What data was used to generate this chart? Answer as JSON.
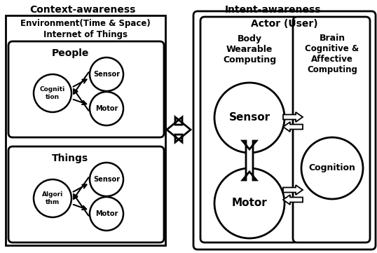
{
  "title_left": "Context-awareness",
  "title_right": "Intent-awareness",
  "env_title1": "Environment(Time & Space)",
  "env_title2": "Internet of Things",
  "actor_title": "Actor (User)",
  "people_label": "People",
  "things_label": "Things",
  "body_label1": "Body",
  "body_label2": "Wearable",
  "body_label3": "Computing",
  "brain_label1": "Brain",
  "brain_label2": "Cognitive &",
  "brain_label3": "Affective",
  "brain_label4": "Computing",
  "sensor_label": "Sensor",
  "motor_label": "Motor",
  "sensor_big": "Sensor",
  "motor_big": "Motor",
  "cognition_big": "Cognition",
  "bg_color": "#ffffff"
}
